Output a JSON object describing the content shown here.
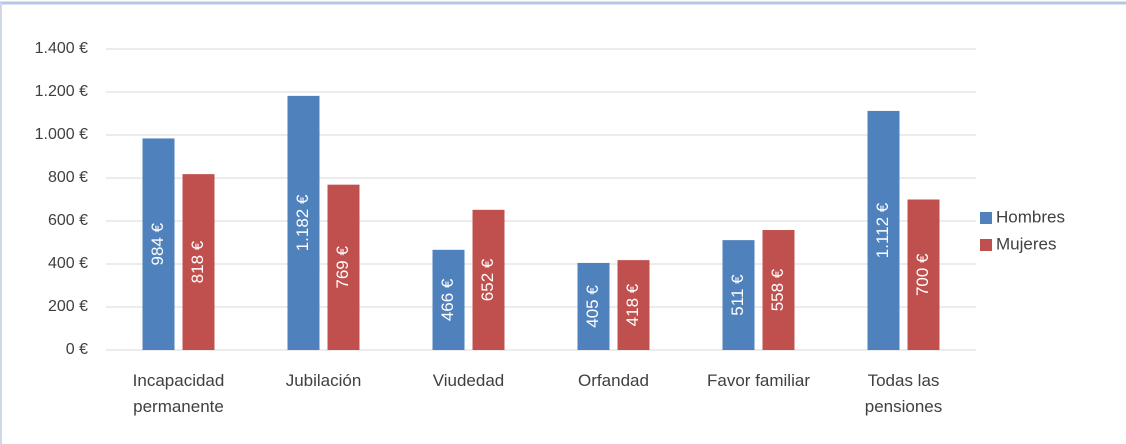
{
  "chart_data": {
    "type": "bar",
    "categories": [
      "Incapacidad permanente",
      "Jubilación",
      "Viudedad",
      "Orfandad",
      "Favor familiar",
      "Todas las pensiones"
    ],
    "series": [
      {
        "name": "Hombres",
        "color": "#4f81bd",
        "values": [
          984,
          1182,
          466,
          405,
          511,
          1112
        ],
        "value_labels": [
          "984 €",
          "1.182 €",
          "466 €",
          "405 €",
          "511 €",
          "1.112 €"
        ]
      },
      {
        "name": "Mujeres",
        "color": "#c0504d",
        "values": [
          818,
          769,
          652,
          418,
          558,
          700
        ],
        "value_labels": [
          "818 €",
          "769 €",
          "652 €",
          "418 €",
          "558 €",
          "700 €"
        ]
      }
    ],
    "ylim": [
      0,
      1400
    ],
    "yticks": [
      {
        "value": 0,
        "label": "0 €"
      },
      {
        "value": 200,
        "label": "200 €"
      },
      {
        "value": 400,
        "label": "400 €"
      },
      {
        "value": 600,
        "label": "600 €"
      },
      {
        "value": 800,
        "label": "800 €"
      },
      {
        "value": 1000,
        "label": "1.000 €"
      },
      {
        "value": 1200,
        "label": "1.200 €"
      },
      {
        "value": 1400,
        "label": "1.400 €"
      }
    ],
    "grid": true,
    "legend": "right"
  }
}
